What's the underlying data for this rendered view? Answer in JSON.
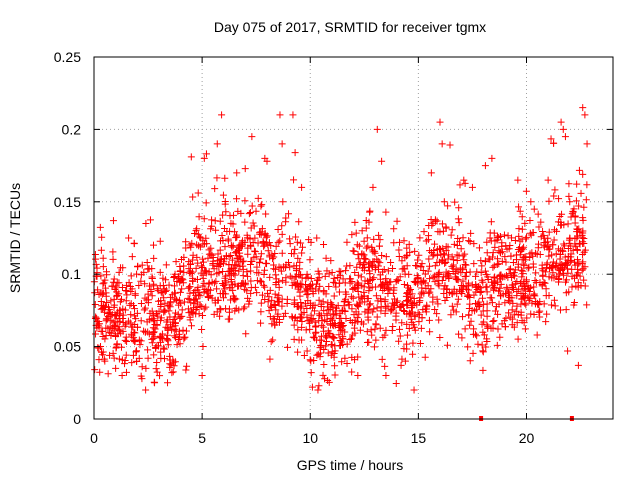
{
  "chart_data": {
    "type": "scatter",
    "title": "Day 075 of 2017, SRMTID for receiver tgmx",
    "xlabel": "GPS time / hours",
    "ylabel": "SRMTID / TECUs",
    "xlim": [
      0,
      24
    ],
    "ylim": [
      0,
      0.25
    ],
    "xticks": [
      0,
      5,
      10,
      15,
      20
    ],
    "yticks": [
      0,
      0.05,
      0.1,
      0.15,
      0.2,
      0.25
    ],
    "ytick_labels": [
      "0",
      "0.05",
      "0.1",
      "0.15",
      "0.2",
      "0.25"
    ],
    "grid": true,
    "marker": "+",
    "color": "#ff0000",
    "baseline_markers_x": [
      17.9,
      22.1
    ],
    "series": [
      {
        "name": "SRMTID",
        "trend": [
          [
            0,
            0.075
          ],
          [
            0.5,
            0.075
          ],
          [
            1,
            0.07
          ],
          [
            1.5,
            0.072
          ],
          [
            2,
            0.07
          ],
          [
            2.5,
            0.07
          ],
          [
            3,
            0.068
          ],
          [
            3.5,
            0.068
          ],
          [
            4,
            0.08
          ],
          [
            4.5,
            0.095
          ],
          [
            5,
            0.1
          ],
          [
            5.5,
            0.105
          ],
          [
            6,
            0.11
          ],
          [
            6.5,
            0.105
          ],
          [
            7,
            0.108
          ],
          [
            7.5,
            0.11
          ],
          [
            8,
            0.1
          ],
          [
            8.5,
            0.095
          ],
          [
            9,
            0.095
          ],
          [
            9.5,
            0.09
          ],
          [
            10,
            0.075
          ],
          [
            10.5,
            0.068
          ],
          [
            11,
            0.065
          ],
          [
            11.5,
            0.07
          ],
          [
            12,
            0.08
          ],
          [
            12.5,
            0.095
          ],
          [
            13,
            0.09
          ],
          [
            13.5,
            0.088
          ],
          [
            14,
            0.085
          ],
          [
            14.5,
            0.085
          ],
          [
            15,
            0.09
          ],
          [
            15.5,
            0.095
          ],
          [
            16,
            0.1
          ],
          [
            16.5,
            0.105
          ],
          [
            17,
            0.1
          ],
          [
            17.5,
            0.085
          ],
          [
            18,
            0.085
          ],
          [
            18.5,
            0.09
          ],
          [
            19,
            0.09
          ],
          [
            19.5,
            0.095
          ],
          [
            20,
            0.1
          ],
          [
            20.5,
            0.105
          ],
          [
            21,
            0.108
          ],
          [
            21.5,
            0.11
          ],
          [
            22,
            0.11
          ],
          [
            22.5,
            0.12
          ],
          [
            22.8,
            0.13
          ]
        ],
        "spikes": [
          [
            0.9,
            0.137
          ],
          [
            1.6,
            0.125
          ],
          [
            2.4,
            0.135
          ],
          [
            4.5,
            0.181
          ],
          [
            5.1,
            0.18
          ],
          [
            5.7,
            0.19
          ],
          [
            5.9,
            0.21
          ],
          [
            6.6,
            0.17
          ],
          [
            7.3,
            0.195
          ],
          [
            7.9,
            0.18
          ],
          [
            8.0,
            0.178
          ],
          [
            8.6,
            0.21
          ],
          [
            8.7,
            0.19
          ],
          [
            9.2,
            0.21
          ],
          [
            9.3,
            0.184
          ],
          [
            9.6,
            0.16
          ],
          [
            10.3,
            0.125
          ],
          [
            12.4,
            0.13
          ],
          [
            12.9,
            0.16
          ],
          [
            13.1,
            0.2
          ],
          [
            13.3,
            0.178
          ],
          [
            14.8,
            0.02
          ],
          [
            15.6,
            0.17
          ],
          [
            16.0,
            0.205
          ],
          [
            16.1,
            0.19
          ],
          [
            16.2,
            0.15
          ],
          [
            17.1,
            0.165
          ],
          [
            17.5,
            0.16
          ],
          [
            18.1,
            0.175
          ],
          [
            18.4,
            0.18
          ],
          [
            19.6,
            0.165
          ],
          [
            20.2,
            0.15
          ],
          [
            21.0,
            0.165
          ],
          [
            21.6,
            0.205
          ],
          [
            21.7,
            0.2
          ],
          [
            21.8,
            0.195
          ],
          [
            22.0,
            0.15
          ],
          [
            22.6,
            0.215
          ],
          [
            22.7,
            0.21
          ],
          [
            22.8,
            0.19
          ]
        ],
        "dips": [
          [
            0.5,
            0.04
          ],
          [
            1.0,
            0.035
          ],
          [
            1.3,
            0.03
          ],
          [
            2.4,
            0.035
          ],
          [
            2.8,
            0.025
          ],
          [
            3.4,
            0.025
          ],
          [
            3.6,
            0.032
          ],
          [
            5.0,
            0.03
          ],
          [
            10.1,
            0.022
          ],
          [
            10.4,
            0.023
          ],
          [
            12.2,
            0.03
          ],
          [
            13.5,
            0.03
          ],
          [
            14.2,
            0.037
          ],
          [
            14.4,
            0.04
          ],
          [
            21.9,
            0.047
          ],
          [
            22.4,
            0.037
          ]
        ],
        "point_count": 2200,
        "spread": 0.02
      }
    ]
  }
}
